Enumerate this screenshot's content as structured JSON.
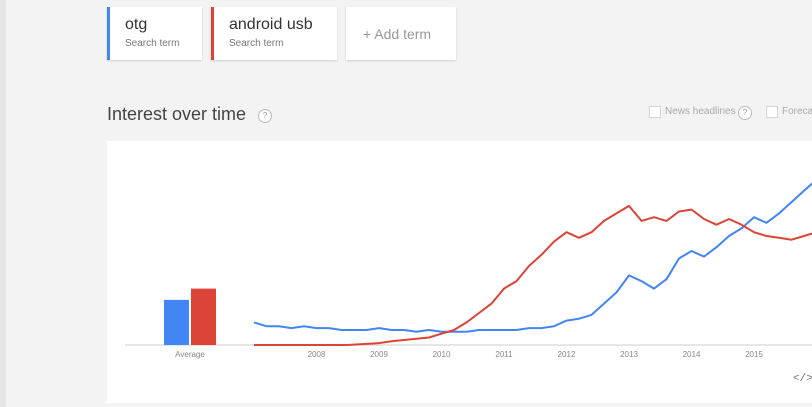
{
  "terms": [
    {
      "name": "otg",
      "subtitle": "Search term",
      "color": "#4285f4"
    },
    {
      "name": "android usb",
      "subtitle": "Search term",
      "color": "#db4437"
    }
  ],
  "add_term_label": "+ Add term",
  "section": {
    "title": "Interest over time",
    "help_glyph": "?",
    "options": [
      {
        "label": "News headlines",
        "checked": false
      },
      {
        "label": "Foreca",
        "checked": false
      }
    ]
  },
  "embed_glyph": "</>",
  "chart_data": {
    "type": "line",
    "title": "",
    "xlabel": "",
    "ylabel": "",
    "x_ticks": [
      "2008",
      "2009",
      "2010",
      "2011",
      "2012",
      "2013",
      "2014",
      "2015"
    ],
    "averages": {
      "label": "Average",
      "values": [
        {
          "series": "otg",
          "value": 24
        },
        {
          "series": "android usb",
          "value": 30
        }
      ]
    },
    "ylim": [
      0,
      100
    ],
    "series": [
      {
        "name": "otg",
        "color": "#4285f4",
        "points": [
          [
            2007.0,
            12
          ],
          [
            2007.2,
            10
          ],
          [
            2007.4,
            10
          ],
          [
            2007.6,
            9
          ],
          [
            2007.8,
            10
          ],
          [
            2008.0,
            9
          ],
          [
            2008.2,
            9
          ],
          [
            2008.4,
            8
          ],
          [
            2008.6,
            8
          ],
          [
            2008.8,
            8
          ],
          [
            2009.0,
            9
          ],
          [
            2009.2,
            8
          ],
          [
            2009.4,
            8
          ],
          [
            2009.6,
            7
          ],
          [
            2009.8,
            8
          ],
          [
            2010.0,
            7
          ],
          [
            2010.2,
            7
          ],
          [
            2010.4,
            7
          ],
          [
            2010.6,
            8
          ],
          [
            2010.8,
            8
          ],
          [
            2011.0,
            8
          ],
          [
            2011.2,
            8
          ],
          [
            2011.4,
            9
          ],
          [
            2011.6,
            9
          ],
          [
            2011.8,
            10
          ],
          [
            2012.0,
            13
          ],
          [
            2012.2,
            14
          ],
          [
            2012.4,
            16
          ],
          [
            2012.6,
            22
          ],
          [
            2012.8,
            28
          ],
          [
            2013.0,
            37
          ],
          [
            2013.2,
            34
          ],
          [
            2013.4,
            30
          ],
          [
            2013.6,
            35
          ],
          [
            2013.8,
            46
          ],
          [
            2014.0,
            50
          ],
          [
            2014.2,
            47
          ],
          [
            2014.4,
            52
          ],
          [
            2014.6,
            58
          ],
          [
            2014.8,
            62
          ],
          [
            2015.0,
            68
          ],
          [
            2015.2,
            65
          ],
          [
            2015.4,
            70
          ],
          [
            2015.6,
            76
          ],
          [
            2015.8,
            82
          ],
          [
            2016.0,
            88
          ]
        ]
      },
      {
        "name": "android usb",
        "color": "#db4437",
        "points": [
          [
            2007.0,
            0
          ],
          [
            2008.0,
            0
          ],
          [
            2008.5,
            0
          ],
          [
            2009.0,
            1
          ],
          [
            2009.2,
            2
          ],
          [
            2009.5,
            3
          ],
          [
            2009.8,
            4
          ],
          [
            2010.0,
            6
          ],
          [
            2010.2,
            8
          ],
          [
            2010.4,
            12
          ],
          [
            2010.6,
            17
          ],
          [
            2010.8,
            22
          ],
          [
            2011.0,
            30
          ],
          [
            2011.2,
            34
          ],
          [
            2011.4,
            42
          ],
          [
            2011.6,
            48
          ],
          [
            2011.8,
            55
          ],
          [
            2012.0,
            60
          ],
          [
            2012.2,
            57
          ],
          [
            2012.4,
            60
          ],
          [
            2012.6,
            66
          ],
          [
            2012.8,
            70
          ],
          [
            2013.0,
            74
          ],
          [
            2013.2,
            66
          ],
          [
            2013.4,
            68
          ],
          [
            2013.6,
            66
          ],
          [
            2013.8,
            71
          ],
          [
            2014.0,
            72
          ],
          [
            2014.2,
            67
          ],
          [
            2014.4,
            64
          ],
          [
            2014.6,
            67
          ],
          [
            2014.8,
            64
          ],
          [
            2015.0,
            60
          ],
          [
            2015.2,
            58
          ],
          [
            2015.4,
            57
          ],
          [
            2015.6,
            56
          ],
          [
            2015.8,
            58
          ],
          [
            2016.0,
            60
          ]
        ]
      }
    ]
  }
}
